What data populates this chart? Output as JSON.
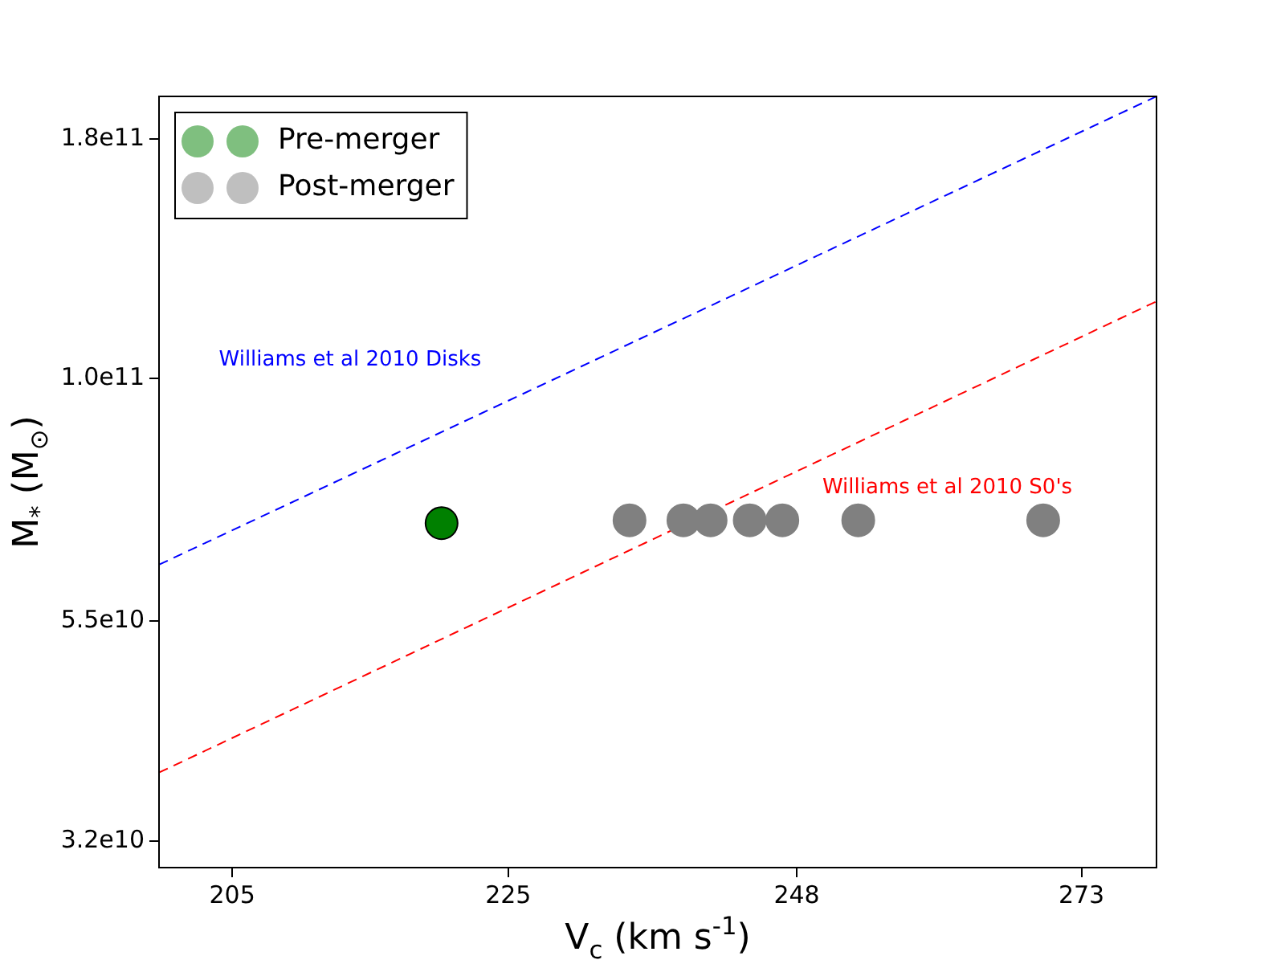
{
  "chart_data": {
    "type": "scatter",
    "xlabel": "V$_{c}$ (km s$^{-1}$)",
    "ylabel": "M$_{*}$ (M$_{⊙}$)",
    "log": "xy",
    "xlim": [
      200,
      280
    ],
    "ylim": [
      30000000000,
      200000000000
    ],
    "xticks": [
      205,
      225,
      248,
      273
    ],
    "yticks": [
      {
        "value": 32000000000,
        "label": "3.2e10"
      },
      {
        "value": 55000000000,
        "label": "5.5e10"
      },
      {
        "value": 100000000000,
        "label": "1.0e11"
      },
      {
        "value": 180000000000,
        "label": "1.8e11"
      }
    ],
    "grid": false,
    "legend": "top left",
    "marker": "circle",
    "series": [
      {
        "name": "Pre-merger",
        "color": "#008000",
        "x": [
          220
        ],
        "values": [
          70000000000
        ]
      },
      {
        "name": "Post-merger",
        "color": "#808080",
        "x": [
          234.4,
          238.7,
          240.9,
          244.1,
          246.8,
          253.2,
          269.5
        ],
        "values": [
          70500000000,
          70500000000,
          70500000000,
          70500000000,
          70500000000,
          70500000000,
          70500000000
        ]
      },
      {
        "type": "line",
        "name": "Williams et al 2010 Disks",
        "color": "#0000ff",
        "line_style": "dashed",
        "marker": "none",
        "x": [
          200,
          280
        ],
        "values": [
          63200000000,
          200000000000
        ]
      },
      {
        "type": "line",
        "name": "Williams et al 2010 S0's",
        "color": "#ff0000",
        "line_style": "dashed",
        "marker": "none",
        "x": [
          200,
          280
        ],
        "values": [
          37900000000,
          120800000000
        ]
      }
    ]
  }
}
